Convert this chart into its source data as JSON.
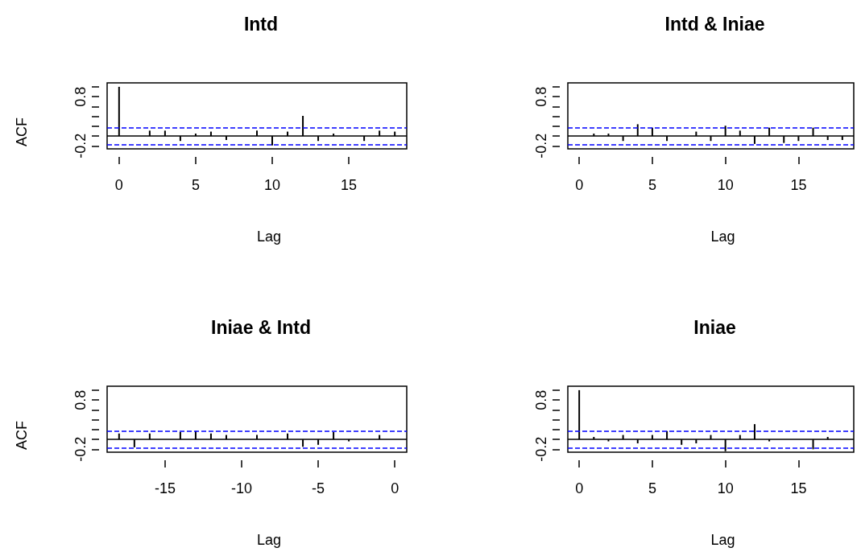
{
  "chart_data": [
    {
      "type": "bar",
      "title": "Intd",
      "xlabel": "Lag",
      "ylabel": "ACF",
      "color": "#000000",
      "x": [
        0,
        1,
        2,
        3,
        4,
        5,
        6,
        7,
        8,
        9,
        10,
        11,
        12,
        13,
        14,
        15,
        16,
        17,
        18
      ],
      "values": [
        1.0,
        null,
        0.11,
        0.11,
        -0.1,
        0.05,
        0.09,
        -0.08,
        null,
        0.11,
        -0.19,
        0.09,
        0.41,
        -0.1,
        0.05,
        null,
        -0.1,
        0.11,
        0.09
      ],
      "xlim": [
        -0.78,
        18.78
      ],
      "xticks": [
        0,
        5,
        10,
        15
      ],
      "ylim": [
        -0.26,
        1.08
      ],
      "yticks": [
        {
          "value": -0.2,
          "label": "-0.2"
        },
        {
          "value": 0,
          "label": null
        },
        {
          "value": 0.2,
          "label": null
        },
        {
          "value": 0.4,
          "label": null
        },
        {
          "value": 0.6,
          "label": null
        },
        {
          "value": 0.8,
          "label": "0.8"
        },
        {
          "value": 1.0,
          "label": null
        }
      ],
      "ref_lines": [
        {
          "axis": "y",
          "value": 0,
          "color": "#000000",
          "line_style": "solid"
        },
        {
          "axis": "y",
          "value": 0.165,
          "color": "#0000ff",
          "line_style": "dashed"
        },
        {
          "axis": "y",
          "value": -0.165,
          "color": "#0000ff",
          "line_style": "dashed"
        }
      ]
    },
    {
      "type": "bar",
      "title": "Intd & Iniae",
      "xlabel": "Lag",
      "color": "#000000",
      "x": [
        0,
        1,
        2,
        3,
        4,
        5,
        6,
        7,
        8,
        9,
        10,
        11,
        12,
        13,
        14,
        15,
        16,
        17,
        18
      ],
      "values": [
        0.0,
        0.05,
        0.05,
        -0.1,
        0.24,
        0.17,
        -0.1,
        0.0,
        0.09,
        -0.1,
        0.21,
        0.11,
        -0.16,
        0.17,
        -0.14,
        -0.1,
        0.17,
        -0.08,
        -0.08
      ],
      "xlim": [
        -0.78,
        18.78
      ],
      "xticks": [
        0,
        5,
        10,
        15
      ],
      "ylim": [
        -0.26,
        1.08
      ],
      "yticks": [
        {
          "value": -0.2,
          "label": "-0.2"
        },
        {
          "value": 0,
          "label": null
        },
        {
          "value": 0.2,
          "label": null
        },
        {
          "value": 0.4,
          "label": null
        },
        {
          "value": 0.6,
          "label": null
        },
        {
          "value": 0.8,
          "label": "0.8"
        },
        {
          "value": 1.0,
          "label": null
        }
      ],
      "ref_lines": [
        {
          "axis": "y",
          "value": 0,
          "color": "#000000",
          "line_style": "solid"
        },
        {
          "axis": "y",
          "value": 0.165,
          "color": "#0000ff",
          "line_style": "dashed"
        },
        {
          "axis": "y",
          "value": -0.165,
          "color": "#0000ff",
          "line_style": "dashed"
        }
      ]
    },
    {
      "type": "bar",
      "title": "Iniae & Intd",
      "xlabel": "Lag",
      "ylabel": "ACF",
      "color": "#000000",
      "x": [
        -18,
        -17,
        -16,
        -15,
        -14,
        -13,
        -12,
        -11,
        -10,
        -9,
        -8,
        -7,
        -6,
        -5,
        -4,
        -3,
        -2,
        -1,
        0
      ],
      "values": [
        0.12,
        -0.16,
        0.12,
        0.0,
        0.15,
        0.17,
        0.12,
        0.09,
        0.0,
        0.09,
        0.0,
        0.12,
        -0.15,
        -0.11,
        0.15,
        -0.04,
        0.0,
        0.09,
        0.0
      ],
      "xlim": [
        -18.78,
        0.78
      ],
      "xticks": [
        -15,
        -10,
        -5,
        0
      ],
      "ylim": [
        -0.26,
        1.08
      ],
      "yticks": [
        {
          "value": -0.2,
          "label": "-0.2"
        },
        {
          "value": 0,
          "label": null
        },
        {
          "value": 0.2,
          "label": null
        },
        {
          "value": 0.4,
          "label": null
        },
        {
          "value": 0.6,
          "label": null
        },
        {
          "value": 0.8,
          "label": "0.8"
        },
        {
          "value": 1.0,
          "label": null
        }
      ],
      "ref_lines": [
        {
          "axis": "y",
          "value": 0,
          "color": "#000000",
          "line_style": "solid"
        },
        {
          "axis": "y",
          "value": 0.165,
          "color": "#0000ff",
          "line_style": "dashed"
        },
        {
          "axis": "y",
          "value": -0.165,
          "color": "#0000ff",
          "line_style": "dashed"
        }
      ]
    },
    {
      "type": "bar",
      "title": "Iniae",
      "xlabel": "Lag",
      "color": "#000000",
      "x": [
        0,
        1,
        2,
        3,
        4,
        5,
        6,
        7,
        8,
        9,
        10,
        11,
        12,
        13,
        14,
        15,
        16,
        17,
        18
      ],
      "values": [
        1.0,
        0.05,
        -0.04,
        0.09,
        -0.08,
        0.09,
        0.17,
        -0.11,
        -0.08,
        0.09,
        -0.24,
        0.09,
        0.31,
        -0.04,
        0.0,
        0.0,
        -0.2,
        0.05,
        0.0
      ],
      "xlim": [
        -0.78,
        18.78
      ],
      "xticks": [
        0,
        5,
        10,
        15
      ],
      "ylim": [
        -0.26,
        1.08
      ],
      "yticks": [
        {
          "value": -0.2,
          "label": "-0.2"
        },
        {
          "value": 0,
          "label": null
        },
        {
          "value": 0.2,
          "label": null
        },
        {
          "value": 0.4,
          "label": null
        },
        {
          "value": 0.6,
          "label": null
        },
        {
          "value": 0.8,
          "label": "0.8"
        },
        {
          "value": 1.0,
          "label": null
        }
      ],
      "ref_lines": [
        {
          "axis": "y",
          "value": 0,
          "color": "#000000",
          "line_style": "solid"
        },
        {
          "axis": "y",
          "value": 0.165,
          "color": "#0000ff",
          "line_style": "dashed"
        },
        {
          "axis": "y",
          "value": -0.165,
          "color": "#0000ff",
          "line_style": "dashed"
        }
      ]
    }
  ]
}
